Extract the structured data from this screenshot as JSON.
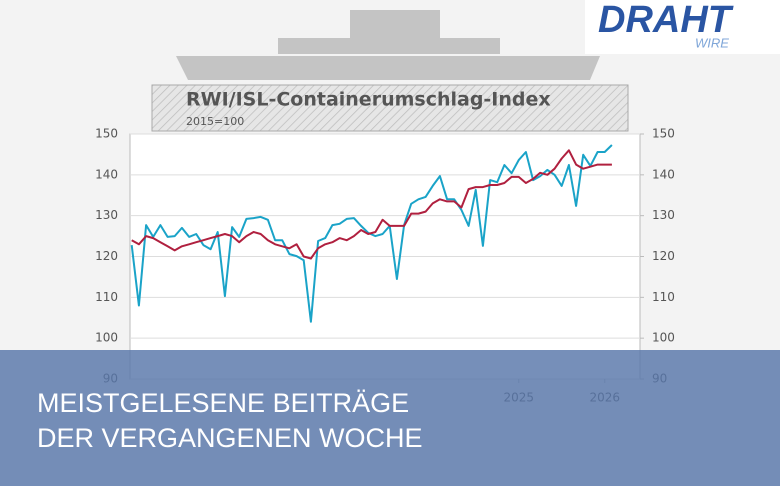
{
  "logo": {
    "title": "DRAHT",
    "subtitle": "WIRE"
  },
  "banner": {
    "lines": [
      "MEISTGELESENE BEITRÄGE",
      "DER VERGANGENEN WOCHE"
    ]
  },
  "chart_data": {
    "type": "line",
    "title": "RWI/ISL-Containerumschlag-Index",
    "subtitle": "2015=100",
    "x": [
      2021.0,
      2021.083,
      2021.167,
      2021.25,
      2021.333,
      2021.417,
      2021.5,
      2021.583,
      2021.667,
      2021.75,
      2021.833,
      2021.917,
      2022.0,
      2022.083,
      2022.167,
      2022.25,
      2022.333,
      2022.417,
      2022.5,
      2022.583,
      2022.667,
      2022.75,
      2022.833,
      2022.917,
      2023.0,
      2023.083,
      2023.167,
      2023.25,
      2023.333,
      2023.417,
      2023.5,
      2023.583,
      2023.667,
      2023.75,
      2023.833,
      2023.917,
      2024.0,
      2024.083,
      2024.167,
      2024.25,
      2024.333,
      2024.417,
      2024.5,
      2024.583,
      2024.667,
      2024.75,
      2024.833,
      2024.917,
      2025.0,
      2025.083,
      2025.167,
      2025.25,
      2025.333,
      2025.417,
      2025.5,
      2025.583,
      2025.667,
      2025.75,
      2025.833,
      2025.917,
      2026.0,
      2026.083,
      2026.167,
      2026.25,
      2026.333,
      2026.417,
      2026.5,
      2026.583
    ],
    "series": [
      {
        "color": "#1aa3c8",
        "values": [
          122.8,
          108,
          127.7,
          124.8,
          127.7,
          124.8,
          125,
          127,
          124.8,
          125.5,
          122.8,
          121.8,
          126,
          110.3,
          127.2,
          124.8,
          129.2,
          129.4,
          129.7,
          129,
          124,
          124,
          120.6,
          120.1,
          119.1,
          104,
          123.8,
          124.5,
          127.7,
          128,
          129.2,
          129.4,
          127.5,
          125.8,
          125,
          125.5,
          127.5,
          114.5,
          127.7,
          132.9,
          134,
          134.6,
          137.3,
          139.7,
          134,
          134,
          131.4,
          127.5,
          136.3,
          122.6,
          138.7,
          138.2,
          142.4,
          140.4,
          143.6,
          145.6,
          138.7,
          139.7,
          141.2,
          140,
          137.3,
          142.4,
          132.4,
          144.9,
          142.2,
          145.6,
          145.6,
          147.3
        ]
      },
      {
        "color": "#b0203f",
        "values": [
          124,
          123,
          125,
          124.5,
          123.5,
          122.5,
          121.5,
          122.5,
          123,
          123.5,
          124,
          124.5,
          125,
          125.5,
          125,
          123.5,
          125,
          126,
          125.5,
          124,
          123,
          122.5,
          122,
          123,
          120,
          119.5,
          122,
          123,
          123.5,
          124.5,
          124,
          125,
          126.5,
          125.5,
          126,
          129,
          127.5,
          127.5,
          127.5,
          130.5,
          130.5,
          131,
          133,
          134,
          133.5,
          133.5,
          132,
          136.5,
          137,
          137,
          137.5,
          137.5,
          138,
          139.5,
          139.5,
          138,
          139,
          140.5,
          140,
          141.5,
          144,
          146,
          142.5,
          141.5,
          142,
          142.5,
          142.5,
          142.5
        ]
      }
    ],
    "xlim": [
      2020.98,
      2026.91
    ],
    "xticks": [
      {
        "value": 2025.5,
        "label": "2025"
      },
      {
        "value": 2026.5,
        "label": "2026"
      }
    ],
    "ylim": [
      90,
      150
    ],
    "yticks": [
      90,
      100,
      110,
      120,
      130,
      140,
      150
    ],
    "y2lim": [
      90,
      150
    ],
    "y2ticks": [
      90,
      100,
      110,
      120,
      130,
      140,
      150
    ],
    "grid": true
  }
}
